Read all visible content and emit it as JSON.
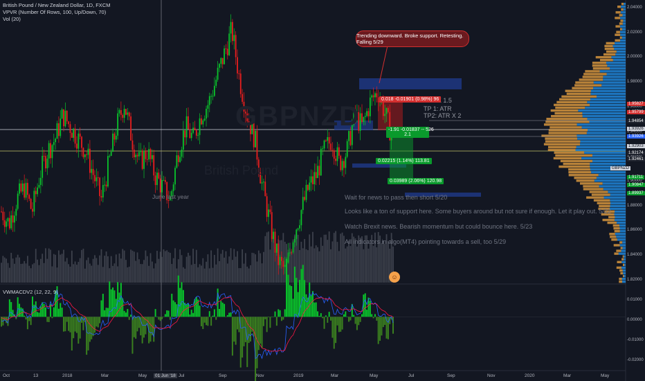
{
  "legend": {
    "symbol": "British Pound / New Zealand Dollar, 1D, FXCM",
    "vpvr": "VPVR (Number Of Rows, 100, Up/Down, 70)",
    "vol": "Vol (20)"
  },
  "macd_label": "VWMACDV2 (12, 22, 9)",
  "watermark": {
    "ticker": "GBPNZD",
    "name": "British Pound"
  },
  "callout": "Trending downward. Broke support. Retesting. Falling 5/29",
  "june_label": "June last year",
  "notes": [
    "Wait for news to pass then short 5/20",
    "Looks like a ton of support here. Some buyers around but not sure if enough. Let it play out. 5/22",
    "Watch Brexit news. Bearish momentum but could bounce here. 5/23",
    "All indicators in algo(MT4) pointing towards a sell, too 5/29"
  ],
  "targets": {
    "tp0": "ATR X 1.5",
    "tp1": "TP 1: ATR",
    "tp2": "TP2: ATR X 2"
  },
  "tags": {
    "red_tag": "-0.01901 (0.98%) 96",
    "red_prefix": "0.018",
    "green1": "-0.01837 -- 526",
    "green1_prefix": "-1.91",
    "green1b": "2.1",
    "green2": "0.02215 (1.14%) 113.81",
    "green3": "0.03989 (2.06%) 120.98"
  },
  "price_axis": [
    "2.04000",
    "2.02000",
    "2.00000",
    "1.98000",
    "1.96000",
    "1.94000",
    "1.92000",
    "1.90000",
    "1.88000",
    "1.86000",
    "1.84000",
    "1.82000"
  ],
  "price_labels": [
    {
      "text": "1.95827",
      "color": "#d32f2f"
    },
    {
      "text": "1.95799",
      "color": "#d32f2f"
    },
    {
      "text": "1.94854",
      "color": "#1e222d"
    },
    {
      "text": "1.93926",
      "color": "#d1d4dc"
    },
    {
      "text": "1.93926",
      "color": "#2962ff"
    },
    {
      "text": "1.92903",
      "color": "#d1d4dc"
    },
    {
      "text": "1.92174",
      "color": "#1e222d"
    },
    {
      "text": "1.92461",
      "color": "#1e222d"
    },
    {
      "text": "GBPNZD",
      "color": "#d1d4dc"
    },
    {
      "text": "1.91711",
      "color": "#0a9a2c"
    },
    {
      "text": "1.90847",
      "color": "#0a9a2c"
    },
    {
      "text": "1.89937",
      "color": "#0a9a2c"
    }
  ],
  "macd_axis": [
    "0.01000",
    "0.00000",
    "-0.01000",
    "-0.02000"
  ],
  "time_axis": [
    "Oct",
    "13",
    "2018",
    "Mar",
    "May",
    "01 Jun '18",
    "Jul",
    "Sep",
    "Nov",
    "2019",
    "Mar",
    "May",
    "Jul",
    "Sep",
    "Nov",
    "2020",
    "Mar",
    "May"
  ],
  "colors": {
    "up": "#26a69a",
    "down": "#ef5350",
    "green": "#0ac42b",
    "red": "#e91e1e",
    "vpvr_up": "#2196f3",
    "vpvr_down": "#f0a742",
    "macd": "#2962ff",
    "signal": "#ff1744",
    "hist_pos": "#0ac42b",
    "hist_neg": "#3a7f1f"
  },
  "chart_data": {
    "type": "candlestick",
    "title": "British Pound / New Zealand Dollar, 1D, FXCM",
    "x_range": [
      "2017-10",
      "2020-05"
    ],
    "ylim": [
      1.81,
      2.045
    ],
    "closes": [
      1.87,
      1.86,
      1.88,
      1.89,
      1.87,
      1.9,
      1.92,
      1.93,
      1.95,
      1.94,
      1.93,
      1.92,
      1.9,
      1.88,
      1.91,
      1.94,
      1.96,
      1.93,
      1.91,
      1.92,
      1.9,
      1.89,
      1.88,
      1.92,
      1.94,
      1.93,
      1.95,
      1.96,
      1.98,
      2.0,
      2.02,
      1.98,
      1.95,
      1.93,
      1.89,
      1.86,
      1.83,
      1.82,
      1.85,
      1.87,
      1.89,
      1.9,
      1.92,
      1.93,
      1.91,
      1.92,
      1.95,
      1.94,
      1.96,
      1.97,
      1.95,
      1.93
    ],
    "annotations": {
      "resistance_zone": [
        1.975,
        1.985
      ],
      "horizontal_lines": [
        1.939,
        1.929
      ],
      "current_price": 1.929
    },
    "macd": {
      "ylim": [
        -0.022,
        0.012
      ]
    }
  }
}
